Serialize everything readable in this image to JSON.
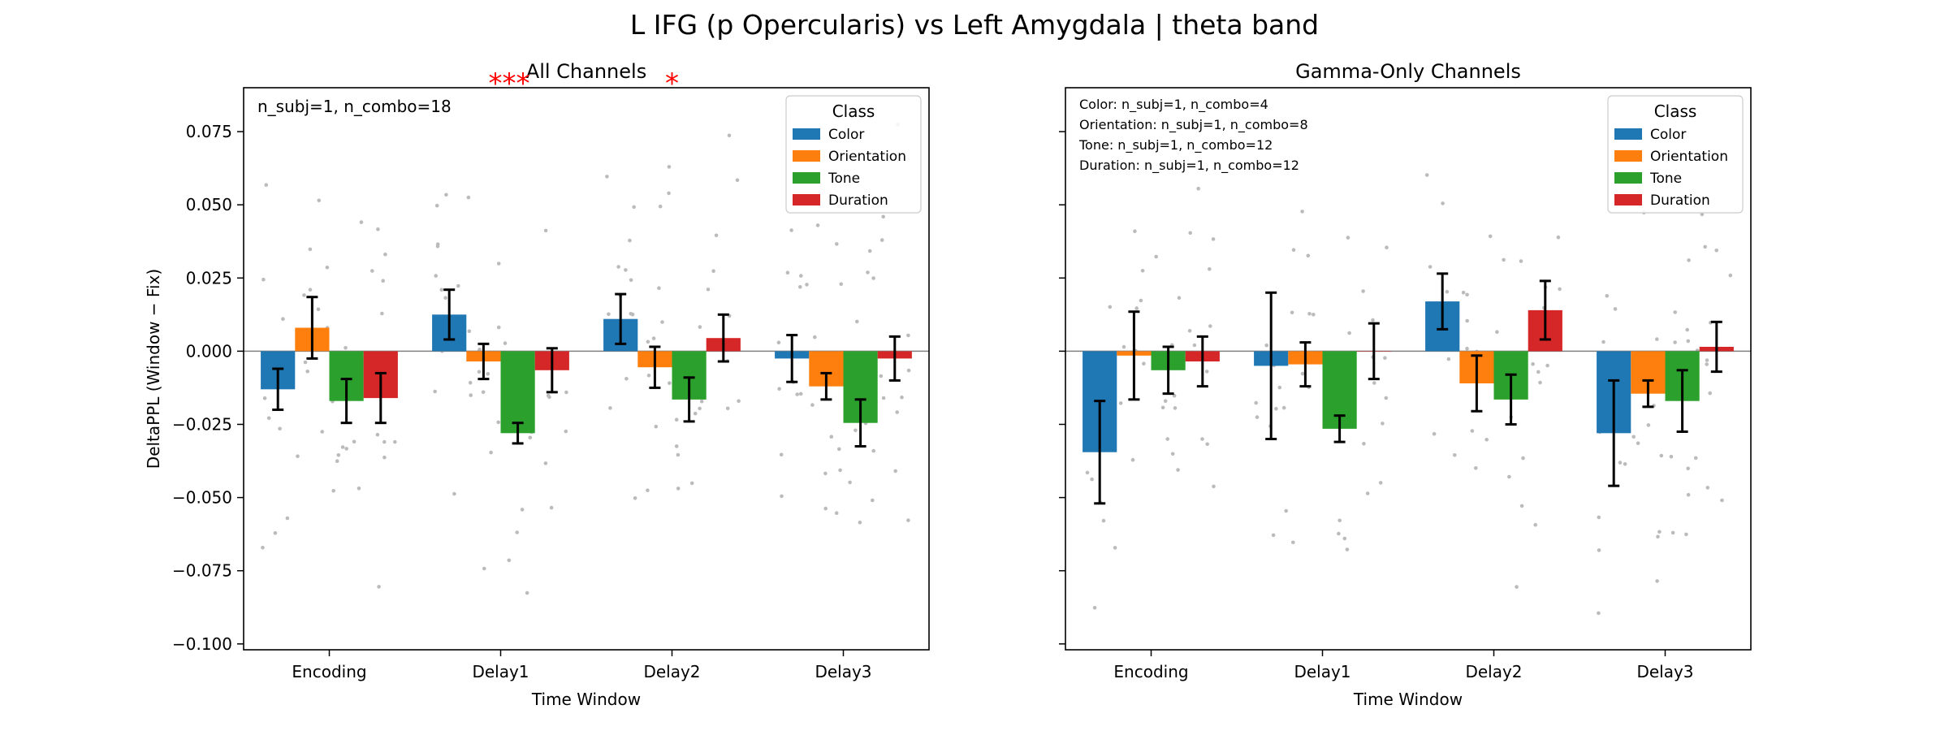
{
  "figure": {
    "suptitle": "L IFG (p Opercularis) vs Left Amygdala  |  theta band"
  },
  "legend": {
    "title": "Class"
  },
  "colors": {
    "Color": "#1f77b4",
    "Orientation": "#ff7f0e",
    "Tone": "#2ca02c",
    "Duration": "#d62728",
    "zero_line": "#808080",
    "points": "#bbbbbb",
    "sig": "#ff0000"
  },
  "chart_data": [
    {
      "type": "bar",
      "title": "All Channels",
      "xlabel": "Time Window",
      "ylabel": "DeltaPPL (Window − Fix)",
      "ylim": [
        -0.102,
        0.09
      ],
      "yticks": [
        0.075,
        0.05,
        0.025,
        0.0,
        -0.025,
        -0.05,
        -0.075,
        -0.1
      ],
      "ytick_labels": [
        "0.075",
        "0.050",
        "0.025",
        "0.000",
        "−0.025",
        "−0.050",
        "−0.075",
        "−0.100"
      ],
      "categories": [
        "Encoding",
        "Delay1",
        "Delay2",
        "Delay3"
      ],
      "annotation_lines": [
        "n_subj=1, n_combo=18"
      ],
      "significance": [
        {
          "category": "Delay1",
          "label": "***"
        },
        {
          "category": "Delay2",
          "label": "*"
        }
      ],
      "legend_position": "top-right",
      "series": [
        {
          "name": "Color",
          "values": [
            -0.013,
            0.0125,
            0.011,
            -0.0025
          ],
          "err": [
            0.007,
            0.0085,
            0.0085,
            0.008
          ]
        },
        {
          "name": "Orientation",
          "values": [
            0.008,
            -0.0035,
            -0.0055,
            -0.012
          ],
          "err": [
            0.0105,
            0.006,
            0.007,
            0.0045
          ]
        },
        {
          "name": "Tone",
          "values": [
            -0.017,
            -0.028,
            -0.0165,
            -0.0245
          ],
          "err": [
            0.0075,
            0.0035,
            0.0075,
            0.008
          ]
        },
        {
          "name": "Duration",
          "values": [
            -0.016,
            -0.0065,
            0.0045,
            -0.0025
          ],
          "err": [
            0.0085,
            0.0075,
            0.008,
            0.0075
          ]
        }
      ]
    },
    {
      "type": "bar",
      "title": "Gamma-Only Channels",
      "xlabel": "Time Window",
      "ylim": [
        -0.102,
        0.09
      ],
      "categories": [
        "Encoding",
        "Delay1",
        "Delay2",
        "Delay3"
      ],
      "annotation_lines": [
        "Color: n_subj=1, n_combo=4",
        "Orientation: n_subj=1, n_combo=8",
        "Tone: n_subj=1, n_combo=12",
        "Duration: n_subj=1, n_combo=12"
      ],
      "significance": [],
      "legend_position": "top-right",
      "series": [
        {
          "name": "Color",
          "values": [
            -0.0345,
            -0.005,
            0.017,
            -0.028
          ],
          "err": [
            0.0175,
            0.025,
            0.0095,
            0.018
          ]
        },
        {
          "name": "Orientation",
          "values": [
            -0.0015,
            -0.0045,
            -0.011,
            -0.0145
          ],
          "err": [
            0.015,
            0.0075,
            0.0095,
            0.0045
          ]
        },
        {
          "name": "Tone",
          "values": [
            -0.0065,
            -0.0265,
            -0.0165,
            -0.017
          ],
          "err": [
            0.008,
            0.0045,
            0.0085,
            0.0105
          ]
        },
        {
          "name": "Duration",
          "values": [
            -0.0035,
            0.0,
            0.014,
            0.0015
          ],
          "err": [
            0.0085,
            0.0095,
            0.01,
            0.0085
          ]
        }
      ]
    }
  ]
}
